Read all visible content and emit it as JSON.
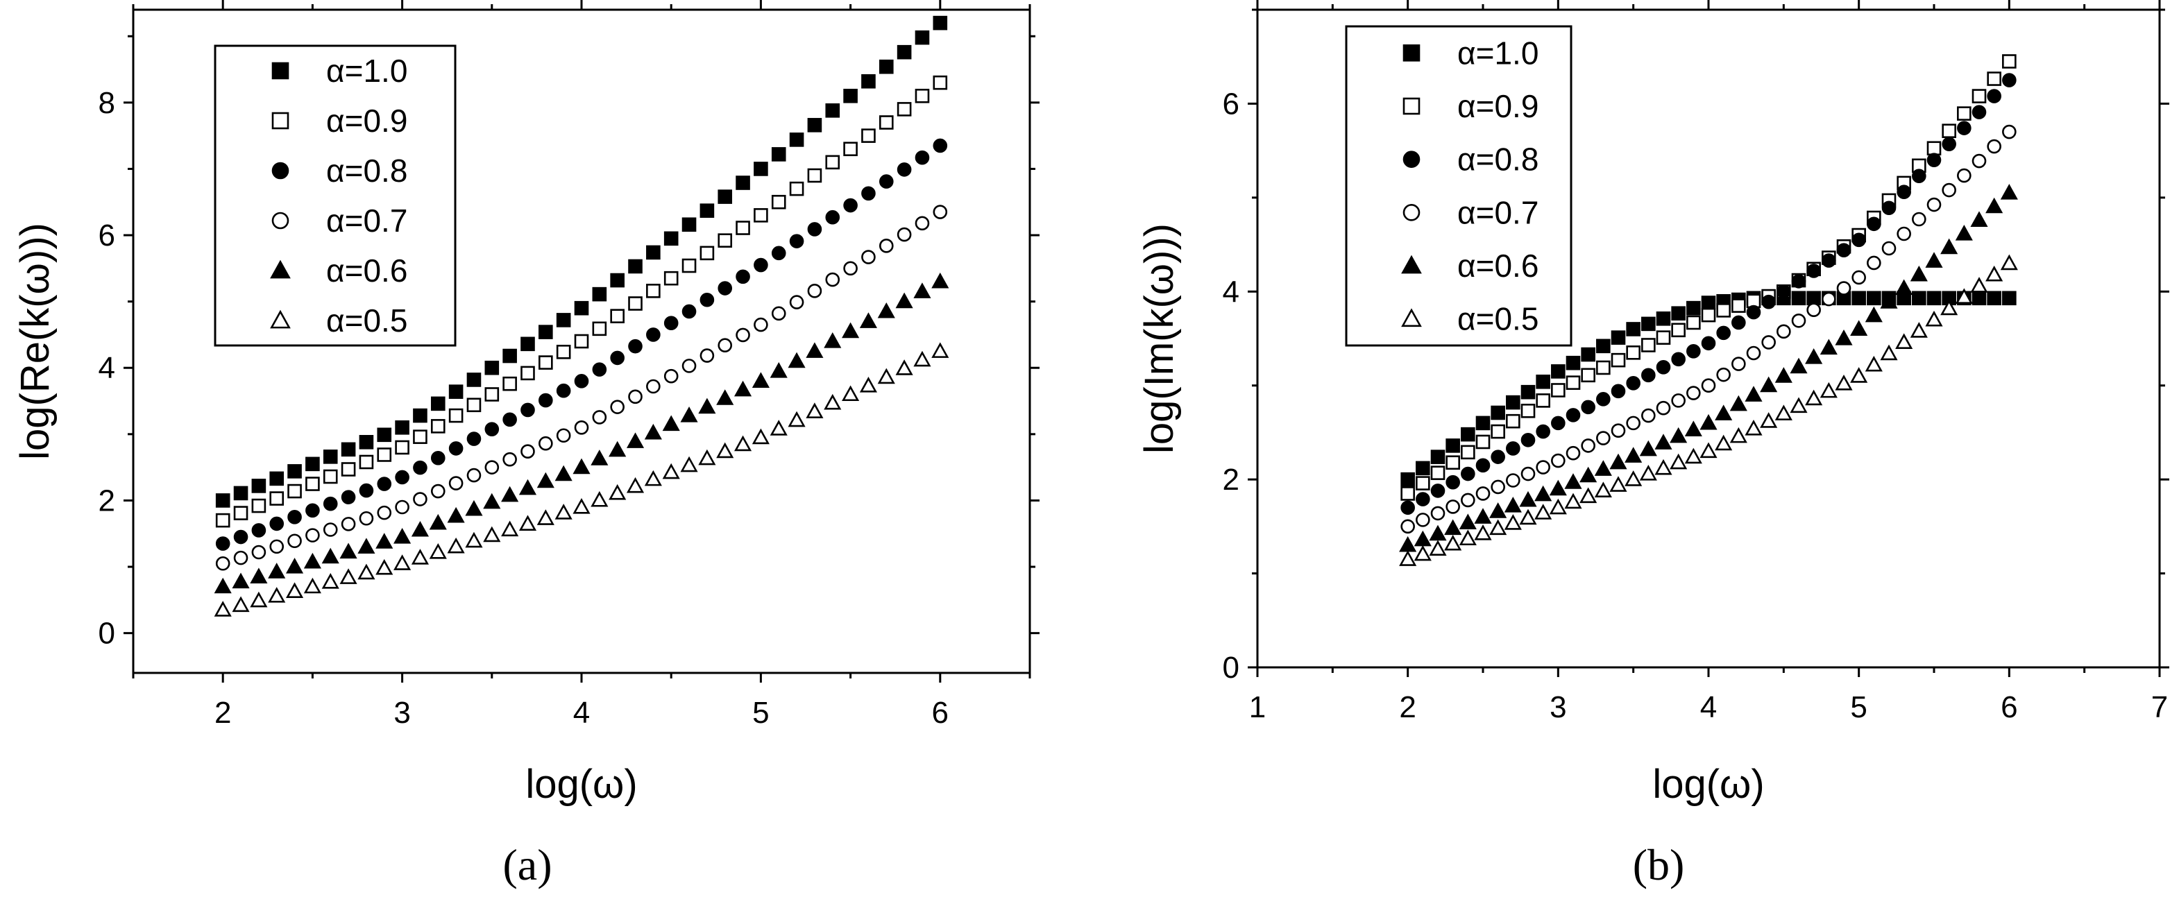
{
  "figure": {
    "panel_a_label": "(a)",
    "panel_b_label": "(b)"
  },
  "chart_data": [
    {
      "type": "scatter",
      "title": "",
      "xlabel": "log(ω)",
      "ylabel": "log(Re(k(ω)))",
      "xlim": [
        1.5,
        6.5
      ],
      "ylim": [
        -0.6,
        9.4
      ],
      "xticks": [
        2,
        3,
        4,
        5,
        6
      ],
      "yticks": [
        0,
        2,
        4,
        6,
        8
      ],
      "grid": false,
      "legend_position": "top-left",
      "x": {
        "start": 2,
        "end": 6,
        "step": 0.1
      },
      "series": [
        {
          "name": "α=1.0",
          "marker": "square-filled",
          "y_at": [
            [
              2,
              2.0
            ],
            [
              3,
              3.1
            ],
            [
              4,
              4.9
            ],
            [
              5,
              7.0
            ],
            [
              6,
              9.2
            ]
          ]
        },
        {
          "name": "α=0.9",
          "marker": "square-open",
          "y_at": [
            [
              2,
              1.7
            ],
            [
              3,
              2.8
            ],
            [
              4,
              4.4
            ],
            [
              5,
              6.3
            ],
            [
              6,
              8.3
            ]
          ]
        },
        {
          "name": "α=0.8",
          "marker": "circle-filled",
          "y_at": [
            [
              2,
              1.35
            ],
            [
              3,
              2.35
            ],
            [
              4,
              3.8
            ],
            [
              5,
              5.55
            ],
            [
              6,
              7.35
            ]
          ]
        },
        {
          "name": "α=0.7",
          "marker": "circle-open",
          "y_at": [
            [
              2,
              1.05
            ],
            [
              3,
              1.9
            ],
            [
              4,
              3.1
            ],
            [
              5,
              4.65
            ],
            [
              6,
              6.35
            ]
          ]
        },
        {
          "name": "α=0.6",
          "marker": "triangle-filled",
          "y_at": [
            [
              2,
              0.7
            ],
            [
              3,
              1.45
            ],
            [
              4,
              2.5
            ],
            [
              5,
              3.8
            ],
            [
              6,
              5.3
            ]
          ]
        },
        {
          "name": "α=0.5",
          "marker": "triangle-open",
          "y_at": [
            [
              2,
              0.35
            ],
            [
              3,
              1.05
            ],
            [
              4,
              1.9
            ],
            [
              5,
              2.95
            ],
            [
              6,
              4.25
            ]
          ]
        }
      ]
    },
    {
      "type": "scatter",
      "title": "",
      "xlabel": "log(ω)",
      "ylabel": "log(Im(k(ω)))",
      "xlim": [
        1,
        7
      ],
      "ylim": [
        0,
        7
      ],
      "xticks": [
        1,
        2,
        3,
        4,
        5,
        6,
        7
      ],
      "yticks": [
        0,
        2,
        4,
        6
      ],
      "grid": false,
      "legend_position": "top-left",
      "x": {
        "start": 2,
        "end": 6,
        "step": 0.1
      },
      "series": [
        {
          "name": "α=1.0",
          "marker": "square-filled",
          "y_at": [
            [
              2,
              2.0
            ],
            [
              2.5,
              2.6
            ],
            [
              3,
              3.15
            ],
            [
              3.5,
              3.6
            ],
            [
              4,
              3.88
            ],
            [
              4.3,
              3.93
            ],
            [
              5,
              3.93
            ],
            [
              6,
              3.93
            ]
          ]
        },
        {
          "name": "α=0.9",
          "marker": "square-open",
          "y_at": [
            [
              2,
              1.85
            ],
            [
              3,
              2.95
            ],
            [
              4,
              3.75
            ],
            [
              4.5,
              4.0
            ],
            [
              5,
              4.6
            ],
            [
              6,
              6.45
            ]
          ]
        },
        {
          "name": "α=0.8",
          "marker": "circle-filled",
          "y_at": [
            [
              2,
              1.7
            ],
            [
              3,
              2.6
            ],
            [
              4,
              3.45
            ],
            [
              5,
              4.55
            ],
            [
              6,
              6.25
            ]
          ]
        },
        {
          "name": "α=0.7",
          "marker": "circle-open",
          "y_at": [
            [
              2,
              1.5
            ],
            [
              3,
              2.2
            ],
            [
              4,
              3.0
            ],
            [
              5,
              4.15
            ],
            [
              6,
              5.7
            ]
          ]
        },
        {
          "name": "α=0.6",
          "marker": "triangle-filled",
          "y_at": [
            [
              2,
              1.3
            ],
            [
              3,
              1.9
            ],
            [
              4,
              2.6
            ],
            [
              5,
              3.6
            ],
            [
              6,
              5.05
            ]
          ]
        },
        {
          "name": "α=0.5",
          "marker": "triangle-open",
          "y_at": [
            [
              2,
              1.15
            ],
            [
              3,
              1.7
            ],
            [
              4,
              2.3
            ],
            [
              5,
              3.1
            ],
            [
              6,
              4.3
            ]
          ]
        }
      ]
    }
  ]
}
